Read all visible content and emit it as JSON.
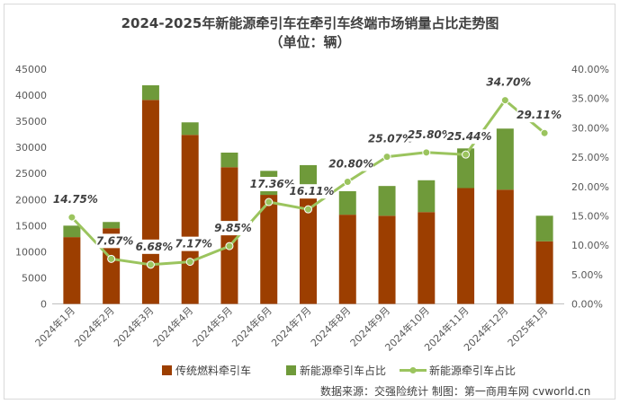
{
  "chart_data": {
    "type": "bar",
    "title": "2024-2025年新能源牵引车在牵引车终端市场销量占比走势图",
    "subtitle": "（单位：辆）",
    "categories": [
      "2024年1月",
      "2024年2月",
      "2024年3月",
      "2024年4月",
      "2024年5月",
      "2024年6月",
      "2024年7月",
      "2024年8月",
      "2024年9月",
      "2024年10月",
      "2024年11月",
      "2024年12月",
      "2025年1月"
    ],
    "stacked": true,
    "series": [
      {
        "name": "传统燃料牵引车",
        "type": "bar",
        "color": "#9c3e00",
        "values": [
          12800,
          14500,
          39100,
          32400,
          26200,
          20900,
          22300,
          17100,
          16900,
          17600,
          22200,
          21900,
          12000
        ]
      },
      {
        "name": "新能源牵引车占比",
        "type": "bar",
        "color": "#6f9a3a",
        "values": [
          2200,
          1200,
          2800,
          2400,
          2800,
          4600,
          4300,
          4500,
          5700,
          6100,
          7600,
          11700,
          4900
        ]
      },
      {
        "name": "新能源牵引车占比",
        "type": "line",
        "axis": "right",
        "color": "#9bc45e",
        "values": [
          14.75,
          7.67,
          6.68,
          7.17,
          9.85,
          17.36,
          16.11,
          20.8,
          25.07,
          25.8,
          25.44,
          34.7,
          29.11
        ]
      }
    ],
    "line_labels": [
      "14.75%",
      "7.67%",
      "6.68%",
      "7.17%",
      "9.85%",
      "17.36%",
      "16.11%",
      "20.80%",
      "25.07%",
      "25.80%",
      "25.44%",
      "34.70%",
      "29.11%"
    ],
    "y_left": {
      "min": 0,
      "max": 45000,
      "ticks": [
        "0",
        "5000",
        "10000",
        "15000",
        "20000",
        "25000",
        "30000",
        "35000",
        "40000",
        "45000"
      ]
    },
    "y_right": {
      "min": 0,
      "max": 40,
      "ticks": [
        "0.00%",
        "5.00%",
        "10.00%",
        "15.00%",
        "20.00%",
        "25.00%",
        "30.00%",
        "35.00%",
        "40.00%"
      ]
    },
    "grid": false,
    "legend_position": "bottom"
  },
  "legend": {
    "item1": "传统燃料牵引车",
    "item2": "新能源牵引车占比",
    "item3": "新能源牵引车占比"
  },
  "source": "数据来源：交强险统计  制图：第一商用车网 cvworld.cn"
}
